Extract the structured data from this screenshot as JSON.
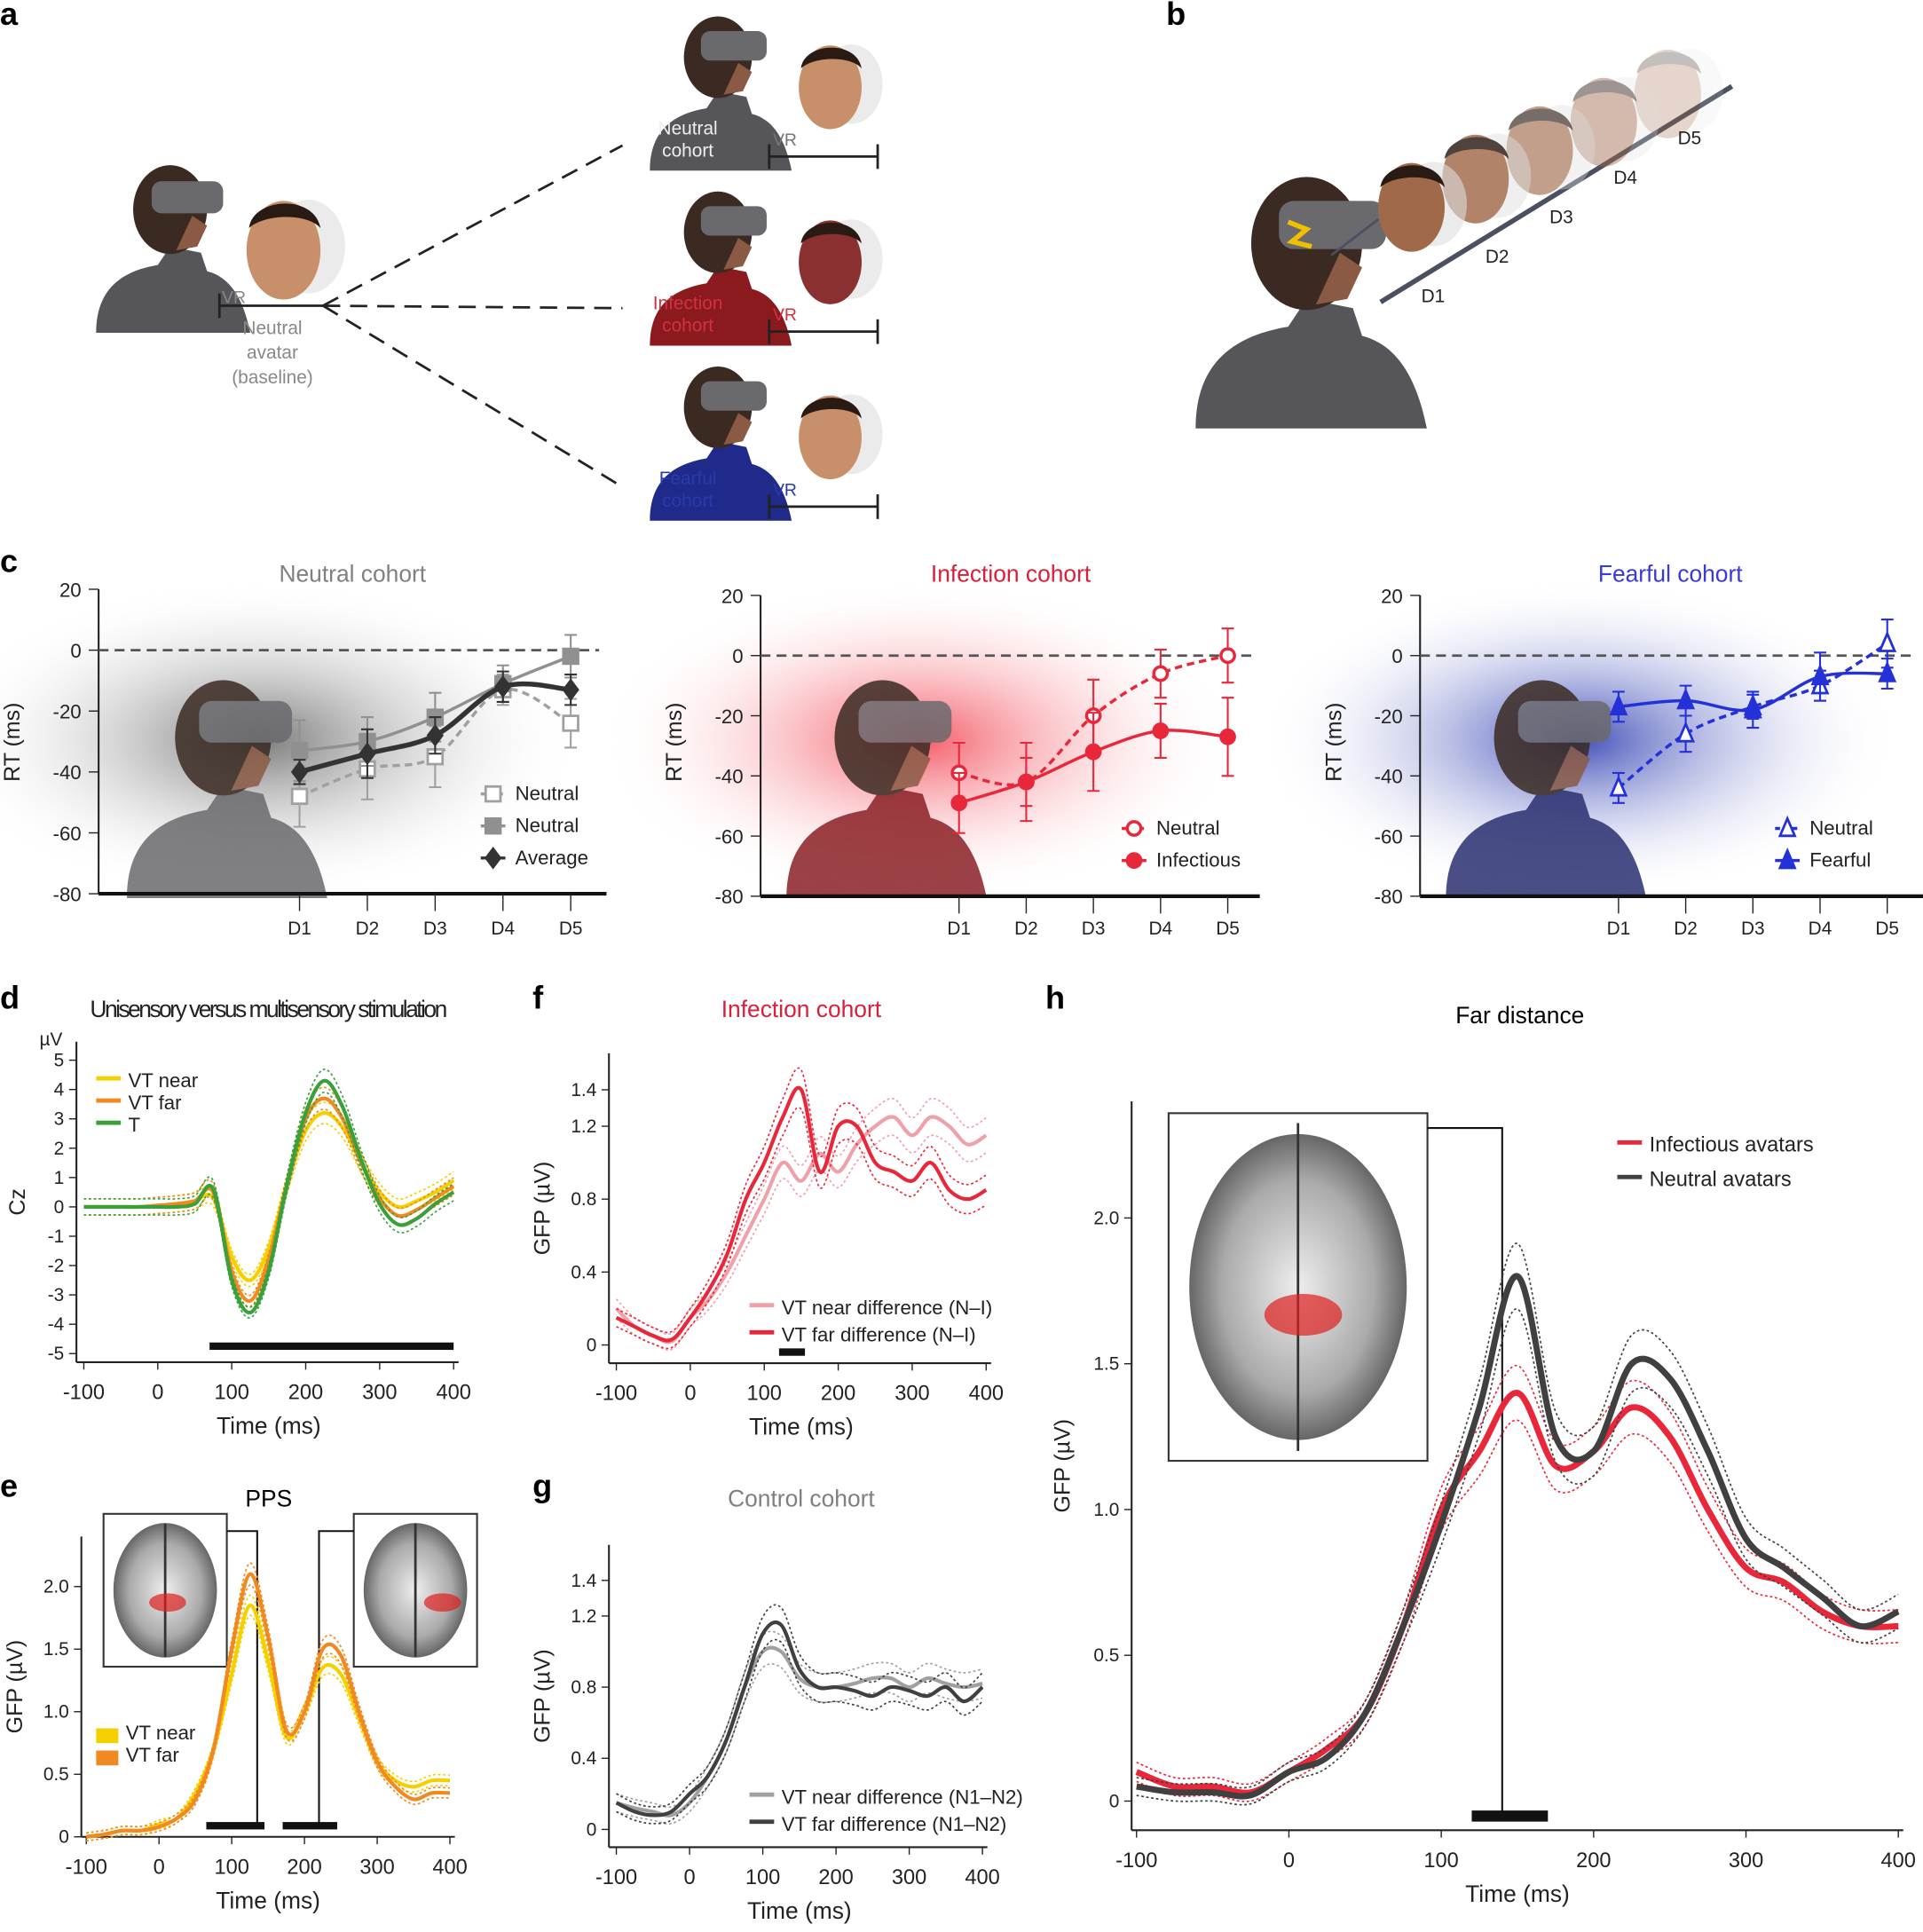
{
  "panels": {
    "a": "a",
    "b": "b",
    "c": "c",
    "d": "d",
    "e": "e",
    "f": "f",
    "g": "g",
    "h": "h"
  },
  "illustration_a": {
    "vr": "VR",
    "baseline_label": [
      "Neutral",
      "avatar",
      "(baseline)"
    ],
    "cohorts": [
      {
        "label": [
          "Neutral",
          "cohort"
        ],
        "color": "#ffffff",
        "shirt": "#55555a",
        "text_color": "#777777"
      },
      {
        "label": [
          "Infection",
          "cohort"
        ],
        "color": "#e8283a",
        "shirt": "#8b1a1e",
        "text_color": "#d23040"
      },
      {
        "label": [
          "Fearful",
          "cohort"
        ],
        "color": "#3a6ae8",
        "shirt": "#1f2a8a",
        "text_color": "#2a3aa8"
      }
    ]
  },
  "illustration_b": {
    "distances": [
      "D1",
      "D2",
      "D3",
      "D4",
      "D5"
    ]
  },
  "colors": {
    "neutral_gray": "#808080",
    "infection_red": "#e8283a",
    "fearful_blue": "#2430d8",
    "dark": "#333333",
    "yellow": "#f5d000",
    "orange": "#f08a20",
    "green": "#3aa03a",
    "pink": "#f0a0a8"
  },
  "chart_data": [
    {
      "id": "c1",
      "type": "line",
      "title": "Neutral cohort",
      "title_color": "#808080",
      "ylabel": "RT (ms)",
      "ylim": [
        -80,
        20
      ],
      "yticks": [
        "20",
        "0",
        "-20",
        "-40",
        "-60",
        "-80"
      ],
      "categories": [
        "D1",
        "D2",
        "D3",
        "D4",
        "D5"
      ],
      "reference_line": 0,
      "legend": "bottom-right",
      "series": [
        {
          "name": "Neutral",
          "marker": "open-square",
          "dash": true,
          "color": "#a0a0a0",
          "values": [
            -48,
            -39,
            -35,
            -13,
            -24
          ],
          "errors": [
            10,
            10,
            10,
            5,
            8
          ]
        },
        {
          "name": "Neutral",
          "marker": "square",
          "dash": false,
          "color": "#909090",
          "values": [
            -33,
            -30,
            -22,
            -11,
            -2
          ],
          "errors": [
            10,
            8,
            8,
            6,
            7
          ]
        },
        {
          "name": "Average",
          "marker": "diamond",
          "dash": false,
          "color": "#333333",
          "values": [
            -40,
            -34,
            -28,
            -12,
            -13
          ],
          "errors": [
            4,
            8,
            6,
            5,
            5
          ]
        }
      ]
    },
    {
      "id": "c2",
      "type": "line",
      "title": "Infection cohort",
      "title_color": "#d8203a",
      "ylabel": "RT (ms)",
      "ylim": [
        -80,
        20
      ],
      "yticks": [
        "20",
        "0",
        "-20",
        "-40",
        "-60",
        "-80"
      ],
      "categories": [
        "D1",
        "D2",
        "D3",
        "D4",
        "D5"
      ],
      "reference_line": 0,
      "legend": "bottom-right",
      "series": [
        {
          "name": "Neutral",
          "marker": "open-circle",
          "dash": true,
          "color": "#e8283a",
          "values": [
            -39,
            -42,
            -20,
            -6,
            0
          ],
          "errors": [
            10,
            8,
            12,
            8,
            9
          ]
        },
        {
          "name": "Infectious",
          "marker": "circle",
          "dash": false,
          "color": "#e8283a",
          "values": [
            -49,
            -42,
            -32,
            -25,
            -27
          ],
          "errors": [
            10,
            13,
            13,
            9,
            13
          ]
        }
      ]
    },
    {
      "id": "c3",
      "type": "line",
      "title": "Fearful cohort",
      "title_color": "#3a3ad8",
      "ylabel": "RT (ms)",
      "ylim": [
        -80,
        20
      ],
      "yticks": [
        "20",
        "0",
        "-20",
        "-40",
        "-60",
        "-80"
      ],
      "categories": [
        "D1",
        "D2",
        "D3",
        "D4",
        "D5"
      ],
      "reference_line": 0,
      "legend": "bottom-right",
      "series": [
        {
          "name": "Neutral",
          "marker": "open-triangle",
          "dash": true,
          "color": "#2430d8",
          "values": [
            -44,
            -26,
            -17,
            -10,
            4
          ],
          "errors": [
            5,
            6,
            4,
            5,
            8
          ]
        },
        {
          "name": "Fearful",
          "marker": "triangle",
          "dash": false,
          "color": "#2430d8",
          "values": [
            -17,
            -15,
            -18,
            -7,
            -6
          ],
          "errors": [
            5,
            5,
            6,
            8,
            5
          ]
        }
      ]
    },
    {
      "id": "d",
      "type": "line",
      "title": "Unisensory versus multisensory stimulation",
      "title_color": "#000000",
      "ylabel": "Cz",
      "yunit": "µV",
      "xlabel": "Time (ms)",
      "xlim": [
        -100,
        400
      ],
      "ylim": [
        -5,
        5
      ],
      "xticks": [
        "-100",
        "0",
        "100",
        "200",
        "300",
        "400"
      ],
      "yticks": [
        "5",
        "4",
        "3",
        "2",
        "1",
        "0",
        "-1",
        "-2",
        "-3",
        "-4",
        "-5"
      ],
      "legend": "top-left",
      "significance": [
        [
          70,
          400
        ]
      ],
      "x": [
        -100,
        -75,
        -50,
        -25,
        0,
        25,
        50,
        75,
        100,
        125,
        150,
        175,
        200,
        225,
        250,
        275,
        300,
        325,
        350,
        375,
        400
      ],
      "series": [
        {
          "name": "VT near",
          "color": "#f5d000",
          "values": [
            0,
            0,
            0,
            0,
            0.05,
            0.1,
            0.2,
            0.3,
            -1.7,
            -2.5,
            -1.4,
            0.8,
            2.6,
            3.2,
            2.7,
            1.5,
            0.5,
            0,
            0.2,
            0.5,
            0.9
          ]
        },
        {
          "name": "VT far",
          "color": "#f08a20",
          "values": [
            0,
            0,
            0,
            0,
            0.05,
            0.1,
            0.2,
            0.5,
            -2.2,
            -3.2,
            -1.8,
            0.8,
            3,
            3.7,
            3,
            1.5,
            0.3,
            -0.3,
            -0.1,
            0.3,
            0.7
          ]
        },
        {
          "name": "T",
          "color": "#3aa03a",
          "values": [
            0,
            0,
            0,
            0,
            0,
            0,
            0.1,
            0.6,
            -2.5,
            -3.6,
            -2.2,
            0.8,
            3.2,
            4.3,
            3.4,
            1.6,
            0.1,
            -0.6,
            -0.4,
            0.1,
            0.5
          ]
        }
      ]
    },
    {
      "id": "e",
      "type": "line",
      "title": "PPS",
      "title_color": "#000000",
      "ylabel": "GFP (µV)",
      "xlabel": "Time (ms)",
      "xlim": [
        -100,
        400
      ],
      "ylim": [
        0,
        2.4
      ],
      "xticks": [
        "-100",
        "0",
        "100",
        "200",
        "300",
        "400"
      ],
      "yticks": [
        "0",
        "0.5",
        "1.0",
        "1.5",
        "2.0"
      ],
      "legend": "left",
      "significance": [
        [
          65,
          145
        ],
        [
          170,
          245
        ]
      ],
      "markers_at": [
        135,
        220
      ],
      "x": [
        -100,
        -75,
        -50,
        -25,
        0,
        25,
        50,
        75,
        100,
        125,
        150,
        175,
        200,
        225,
        250,
        275,
        300,
        325,
        350,
        375,
        400
      ],
      "series": [
        {
          "name": "VT near",
          "color": "#f5d000",
          "values": [
            0,
            0.02,
            0.05,
            0.05,
            0.1,
            0.15,
            0.35,
            0.7,
            1.3,
            1.85,
            1.4,
            0.8,
            1.0,
            1.35,
            1.3,
            0.95,
            0.6,
            0.45,
            0.4,
            0.45,
            0.45
          ]
        },
        {
          "name": "VT far",
          "color": "#f08a20",
          "values": [
            0,
            0.02,
            0.05,
            0.05,
            0.08,
            0.15,
            0.3,
            0.7,
            1.5,
            2.1,
            1.6,
            0.85,
            1.0,
            1.5,
            1.45,
            1.0,
            0.6,
            0.4,
            0.3,
            0.35,
            0.35
          ]
        }
      ]
    },
    {
      "id": "f",
      "type": "line",
      "title": "Infection cohort",
      "title_color": "#d8203a",
      "ylabel": "GFP (µV)",
      "xlabel": "Time (ms)",
      "xlim": [
        -100,
        400
      ],
      "ylim": [
        -0.1,
        1.6
      ],
      "xticks": [
        "-100",
        "0",
        "100",
        "200",
        "300",
        "400"
      ],
      "yticks": [
        "0",
        "0.4",
        "0.8",
        "1.2",
        "1.4"
      ],
      "legend": "bottom-right",
      "significance": [
        [
          120,
          155
        ]
      ],
      "x": [
        -100,
        -75,
        -50,
        -25,
        0,
        25,
        50,
        75,
        100,
        125,
        150,
        175,
        200,
        225,
        250,
        275,
        300,
        325,
        350,
        375,
        400
      ],
      "series": [
        {
          "name": "VT near difference (N–I)",
          "color": "#f0a0a8",
          "values": [
            0.2,
            0.1,
            0.05,
            0.02,
            0.15,
            0.25,
            0.4,
            0.6,
            0.8,
            1.0,
            0.9,
            1.05,
            0.95,
            1.1,
            1.2,
            1.25,
            1.15,
            1.25,
            1.2,
            1.1,
            1.15
          ]
        },
        {
          "name": "VT far difference (N–I)",
          "color": "#e8283a",
          "values": [
            0.15,
            0.1,
            0.05,
            0.03,
            0.15,
            0.3,
            0.5,
            0.8,
            1.0,
            1.25,
            1.4,
            0.95,
            1.2,
            1.2,
            1.0,
            0.95,
            0.9,
            1.0,
            0.85,
            0.8,
            0.85
          ]
        }
      ]
    },
    {
      "id": "g",
      "type": "line",
      "title": "Control cohort",
      "title_color": "#808080",
      "ylabel": "GFP (µV)",
      "xlabel": "Time (ms)",
      "xlim": [
        -100,
        400
      ],
      "ylim": [
        -0.1,
        1.6
      ],
      "xticks": [
        "-100",
        "0",
        "100",
        "200",
        "300",
        "400"
      ],
      "yticks": [
        "0",
        "0.4",
        "0.8",
        "1.2",
        "1.4"
      ],
      "legend": "bottom-right",
      "x": [
        -100,
        -75,
        -50,
        -25,
        0,
        25,
        50,
        75,
        100,
        125,
        150,
        175,
        200,
        225,
        250,
        275,
        300,
        325,
        350,
        375,
        400
      ],
      "series": [
        {
          "name": "VT near difference (N1–N2)",
          "color": "#a0a0a0",
          "values": [
            0.15,
            0.12,
            0.1,
            0.08,
            0.15,
            0.3,
            0.5,
            0.8,
            1.0,
            1.0,
            0.85,
            0.8,
            0.8,
            0.82,
            0.85,
            0.85,
            0.8,
            0.85,
            0.82,
            0.8,
            0.82
          ]
        },
        {
          "name": "VT far difference (N1–N2)",
          "color": "#404040",
          "values": [
            0.15,
            0.1,
            0.08,
            0.1,
            0.2,
            0.3,
            0.5,
            0.8,
            1.1,
            1.15,
            0.9,
            0.8,
            0.8,
            0.78,
            0.75,
            0.8,
            0.78,
            0.75,
            0.8,
            0.72,
            0.8
          ]
        }
      ]
    },
    {
      "id": "h",
      "type": "line",
      "title": "Far distance",
      "title_color": "#000000",
      "ylabel": "GFP (µV)",
      "xlabel": "Time (ms)",
      "xlim": [
        -100,
        400
      ],
      "ylim": [
        -0.1,
        2.4
      ],
      "xticks": [
        "-100",
        "0",
        "100",
        "200",
        "300",
        "400"
      ],
      "yticks": [
        "0",
        "0.5",
        "1.0",
        "1.5",
        "2.0"
      ],
      "legend": "top-right",
      "significance": [
        [
          120,
          170
        ]
      ],
      "markers_at": [
        140
      ],
      "x": [
        -100,
        -75,
        -50,
        -25,
        0,
        25,
        50,
        75,
        100,
        125,
        150,
        175,
        200,
        225,
        250,
        275,
        300,
        325,
        350,
        375,
        400
      ],
      "series": [
        {
          "name": "Infectious avatars",
          "color": "#e8283a",
          "values": [
            0.1,
            0.05,
            0.05,
            0.03,
            0.1,
            0.18,
            0.3,
            0.6,
            1.0,
            1.2,
            1.4,
            1.15,
            1.2,
            1.35,
            1.25,
            1.0,
            0.8,
            0.75,
            0.65,
            0.6,
            0.6
          ]
        },
        {
          "name": "Neutral avatars",
          "color": "#404040",
          "values": [
            0.05,
            0.03,
            0.03,
            0.02,
            0.1,
            0.15,
            0.3,
            0.6,
            0.95,
            1.35,
            1.8,
            1.25,
            1.2,
            1.5,
            1.45,
            1.2,
            0.9,
            0.8,
            0.7,
            0.6,
            0.65
          ]
        }
      ]
    }
  ]
}
